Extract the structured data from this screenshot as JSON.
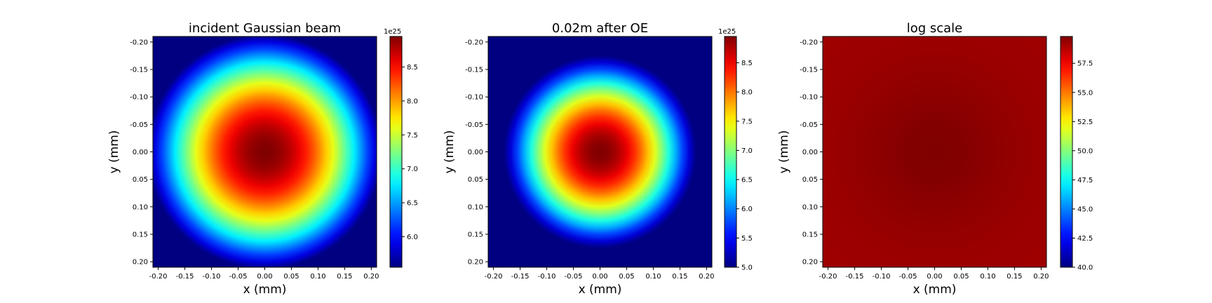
{
  "chart_data": [
    {
      "type": "heatmap",
      "title": "incident Gaussian beam",
      "xlabel": "x (mm)",
      "ylabel": "y (mm)",
      "xlim": [
        -0.21,
        0.21
      ],
      "ylim": [
        0.21,
        -0.21
      ],
      "xticks": [
        "-0.20",
        "-0.15",
        "-0.10",
        "-0.05",
        "0.00",
        "0.05",
        "0.10",
        "0.15",
        "0.20"
      ],
      "yticks": [
        "-0.20",
        "-0.15",
        "-0.10",
        "-0.05",
        "0.00",
        "0.05",
        "0.10",
        "0.15",
        "0.20"
      ],
      "colormap": "jet",
      "colorbar": {
        "offset_label": "1e25",
        "range": [
          5.55,
          8.95
        ],
        "ticks": [
          6.0,
          6.5,
          7.0,
          7.5,
          8.0,
          8.5
        ],
        "tick_labels": [
          "6.0",
          "6.5",
          "7.0",
          "7.5",
          "8.0",
          "8.5"
        ]
      },
      "field": {
        "peak": 8.95,
        "beam_radius_mm": 0.45,
        "center": [
          0.0,
          0.0
        ]
      }
    },
    {
      "type": "heatmap",
      "title": "0.02m after OE",
      "xlabel": "x (mm)",
      "ylabel": "y (mm)",
      "xlim": [
        -0.21,
        0.21
      ],
      "ylim": [
        0.21,
        -0.21
      ],
      "xticks": [
        "-0.20",
        "-0.15",
        "-0.10",
        "-0.05",
        "0.00",
        "0.05",
        "0.10",
        "0.15",
        "0.20"
      ],
      "yticks": [
        "-0.20",
        "-0.15",
        "-0.10",
        "-0.05",
        "0.00",
        "0.05",
        "0.10",
        "0.15",
        "0.20"
      ],
      "colormap": "jet",
      "colorbar": {
        "offset_label": "1e25",
        "range": [
          5.0,
          8.95
        ],
        "ticks": [
          5.0,
          5.5,
          6.0,
          6.5,
          7.0,
          7.5,
          8.0,
          8.5
        ],
        "tick_labels": [
          "5.0",
          "5.5",
          "6.0",
          "6.5",
          "7.0",
          "7.5",
          "8.0",
          "8.5"
        ]
      },
      "field": {
        "peak": 8.95,
        "beam_radius_mm": 0.33,
        "center": [
          0.0,
          0.0
        ]
      }
    },
    {
      "type": "heatmap",
      "title": "log scale",
      "xlabel": "x (mm)",
      "ylabel": "y (mm)",
      "xlim": [
        -0.21,
        0.21
      ],
      "ylim": [
        0.21,
        -0.21
      ],
      "xticks": [
        "-0.20",
        "-0.15",
        "-0.10",
        "-0.05",
        "0.00",
        "0.05",
        "0.10",
        "0.15",
        "0.20"
      ],
      "yticks": [
        "-0.20",
        "-0.15",
        "-0.10",
        "-0.05",
        "0.00",
        "0.05",
        "0.10",
        "0.15",
        "0.20"
      ],
      "colormap": "jet",
      "colorbar": {
        "offset_label": "",
        "range": [
          40.0,
          59.8
        ],
        "ticks": [
          40.0,
          42.5,
          45.0,
          47.5,
          50.0,
          52.5,
          55.0,
          57.5
        ],
        "tick_labels": [
          "40.0",
          "42.5",
          "45.0",
          "47.5",
          "50.0",
          "52.5",
          "55.0",
          "57.5"
        ]
      },
      "field": {
        "peak": 59.8,
        "min": 59.2,
        "center": [
          0.0,
          0.0
        ]
      }
    }
  ]
}
